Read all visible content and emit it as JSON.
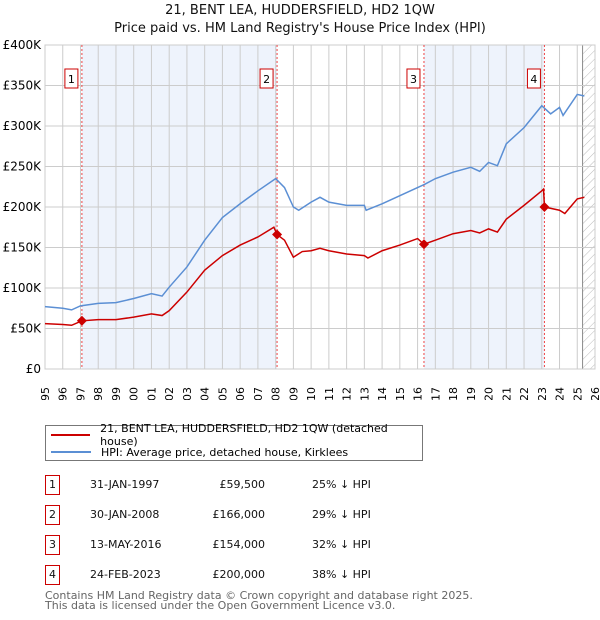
{
  "chart_data": {
    "type": "line",
    "title": "21, BENT LEA, HUDDERSFIELD, HD2 1QW",
    "subtitle": "Price paid vs. HM Land Registry's House Price Index (HPI)",
    "xlim": [
      1995,
      2026
    ],
    "ylim": [
      0,
      400000
    ],
    "x_ticks": [
      "1995",
      "1996",
      "1997",
      "1998",
      "1999",
      "2000",
      "2001",
      "2002",
      "2003",
      "2004",
      "2005",
      "2006",
      "2007",
      "2008",
      "2009",
      "2010",
      "2011",
      "2012",
      "2013",
      "2014",
      "2015",
      "2016",
      "2017",
      "2018",
      "2019",
      "2020",
      "2021",
      "2022",
      "2023",
      "2024",
      "2025",
      "2026"
    ],
    "y_ticks": [
      {
        "v": 0,
        "label": "£0"
      },
      {
        "v": 50000,
        "label": "£50K"
      },
      {
        "v": 100000,
        "label": "£100K"
      },
      {
        "v": 150000,
        "label": "£150K"
      },
      {
        "v": 200000,
        "label": "£200K"
      },
      {
        "v": 250000,
        "label": "£250K"
      },
      {
        "v": 300000,
        "label": "£300K"
      },
      {
        "v": 350000,
        "label": "£350K"
      },
      {
        "v": 400000,
        "label": "£400K"
      }
    ],
    "grid": true,
    "series": [
      {
        "name": "21, BENT LEA, HUDDERSFIELD, HD2 1QW (detached house)",
        "color": "#cc0000",
        "x": [
          1995,
          1996,
          1996.5,
          1997.08,
          1998,
          1999,
          2000,
          2001,
          2001.6,
          2002,
          2003,
          2004,
          2005,
          2006,
          2007,
          2007.9,
          2008.08,
          2008.5,
          2009,
          2009.5,
          2010,
          2010.5,
          2011,
          2012,
          2013,
          2013.2,
          2014,
          2015,
          2016,
          2016.36,
          2017,
          2018,
          2019,
          2019.5,
          2020,
          2020.5,
          2021,
          2022,
          2023,
          2023.1,
          2023.15,
          2024,
          2024.3,
          2025,
          2025.4
        ],
        "y": [
          56000,
          55000,
          54000,
          59500,
          61000,
          61000,
          64000,
          68000,
          66000,
          72000,
          95000,
          122000,
          140000,
          153000,
          163000,
          175000,
          166000,
          159000,
          138000,
          145000,
          146000,
          149000,
          146000,
          142000,
          140000,
          137000,
          146000,
          153000,
          161000,
          154000,
          159000,
          167000,
          171000,
          168000,
          173000,
          169000,
          185000,
          202000,
          220000,
          222000,
          200000,
          196000,
          192000,
          210000,
          212000
        ]
      },
      {
        "name": "HPI: Average price, detached house, Kirklees",
        "color": "#5b8fd4",
        "x": [
          1995,
          1996,
          1996.5,
          1997,
          1998,
          1999,
          2000,
          2001,
          2001.6,
          2002,
          2003,
          2004,
          2005,
          2006,
          2007,
          2008,
          2008.5,
          2009,
          2009.3,
          2010,
          2010.5,
          2011,
          2012,
          2013,
          2013.1,
          2014,
          2015,
          2016,
          2016.4,
          2017,
          2018,
          2019,
          2019.5,
          2020,
          2020.5,
          2021,
          2022,
          2023,
          2023.5,
          2024,
          2024.2,
          2025,
          2025.4
        ],
        "y": [
          77000,
          75000,
          73000,
          78000,
          81000,
          82000,
          87000,
          93000,
          90000,
          101000,
          126000,
          159000,
          187000,
          204000,
          220000,
          235000,
          224000,
          200000,
          196000,
          206000,
          212000,
          206000,
          202000,
          202000,
          196000,
          204000,
          214000,
          224000,
          228000,
          235000,
          243000,
          249000,
          244000,
          255000,
          251000,
          278000,
          298000,
          325000,
          315000,
          323000,
          313000,
          339000,
          337000
        ]
      }
    ],
    "sales": [
      {
        "n": "1",
        "x": 1997.08,
        "y": 59500,
        "date": "31-JAN-1997",
        "price": "£59,500",
        "hpi": "25% ↓ HPI"
      },
      {
        "n": "2",
        "x": 2008.08,
        "y": 166000,
        "date": "30-JAN-2008",
        "price": "£166,000",
        "hpi": "29% ↓ HPI"
      },
      {
        "n": "3",
        "x": 2016.36,
        "y": 154000,
        "date": "13-MAY-2016",
        "price": "£154,000",
        "hpi": "32% ↓ HPI"
      },
      {
        "n": "4",
        "x": 2023.15,
        "y": 200000,
        "date": "24-FEB-2023",
        "price": "£200,000",
        "hpi": "38% ↓ HPI"
      }
    ],
    "projection_start": 2025.3,
    "legend": [
      "21, BENT LEA, HUDDERSFIELD, HD2 1QW (detached house)",
      "HPI: Average price, detached house, Kirklees"
    ]
  },
  "footer": {
    "line1": "Contains HM Land Registry data © Crown copyright and database right 2025.",
    "line2": "This data is licensed under the Open Government Licence v3.0."
  }
}
